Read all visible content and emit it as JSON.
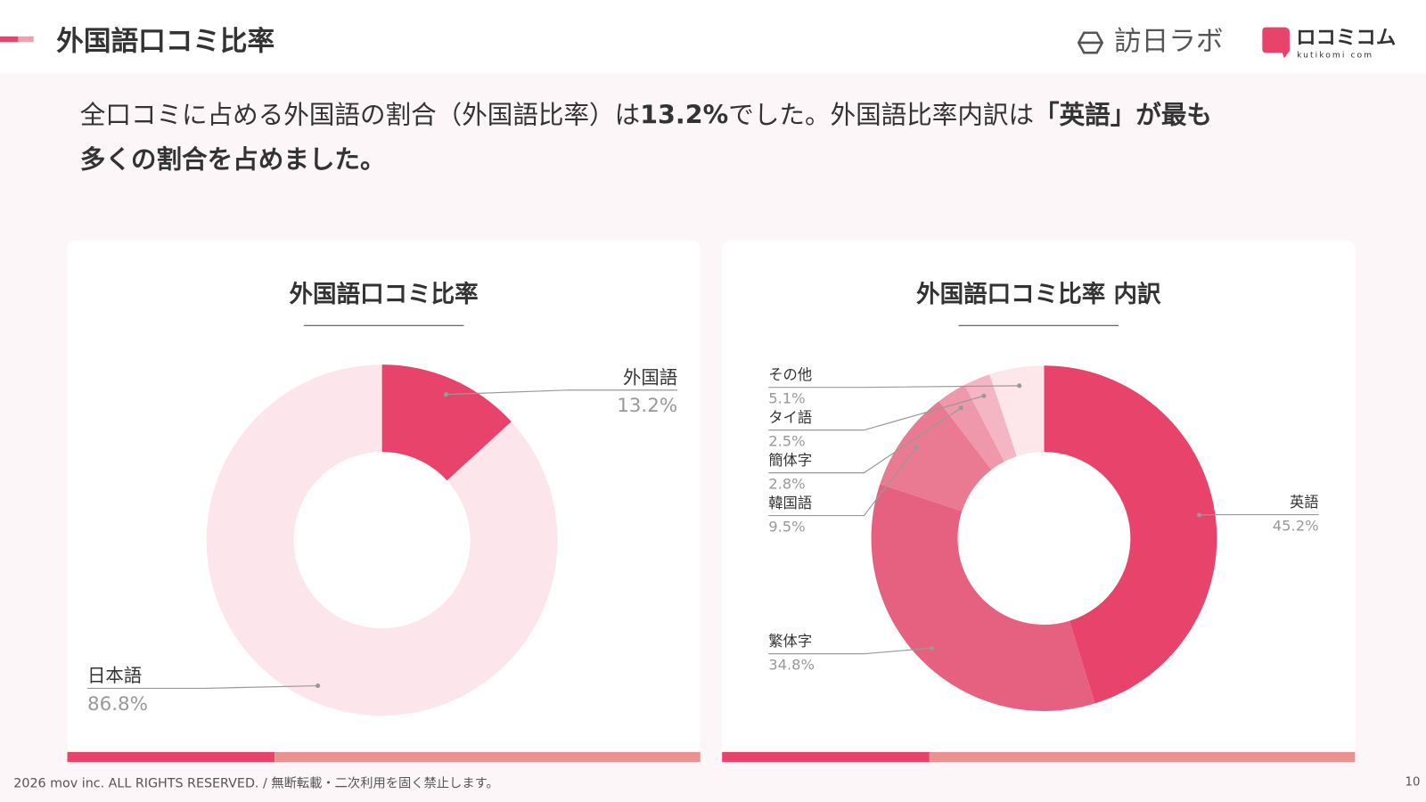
{
  "header": {
    "title": "外国語口コミ比率",
    "logo1": "訪日ラボ",
    "logo2": "ロコミコム",
    "logo2_sub": "kutikomi com"
  },
  "summary": [
    [
      {
        "text": "全口コミに占める外国語の割合（外国語比率）は",
        "bold": false
      },
      {
        "text": "13.2%",
        "bold": true
      },
      {
        "text": "でした。外国語比率内訳は",
        "bold": false
      },
      {
        "text": "「英語」が最も",
        "bold": true
      }
    ],
    [
      {
        "text": "多くの割合を占めました。",
        "bold": true
      }
    ]
  ],
  "chart_data": [
    {
      "type": "donut",
      "title": "外国語口コミ比率",
      "categories": [
        "外国語",
        "日本語"
      ],
      "values": [
        13.2,
        86.8
      ],
      "value_labels": [
        "13.2%",
        "86.8%"
      ],
      "colors": [
        "#e8436a",
        "#fce6ec"
      ]
    },
    {
      "type": "donut",
      "title": "外国語口コミ比率 内訳",
      "categories": [
        "英語",
        "繁体字",
        "韓国語",
        "簡体字",
        "タイ語",
        "その他"
      ],
      "values": [
        45.2,
        34.8,
        9.5,
        2.8,
        2.5,
        5.1
      ],
      "value_labels": [
        "45.2%",
        "34.8%",
        "9.5%",
        "2.8%",
        "2.5%",
        "5.1%"
      ],
      "colors": [
        "#e8436a",
        "#e5617f",
        "#ea7a92",
        "#f098ab",
        "#f5b6c4",
        "#fde7eb"
      ]
    }
  ],
  "footer": {
    "copyright": "2026 mov inc. ALL RIGHTS RESERVED. / 無断転載・二次利用を固く禁止します。",
    "page": "10"
  }
}
